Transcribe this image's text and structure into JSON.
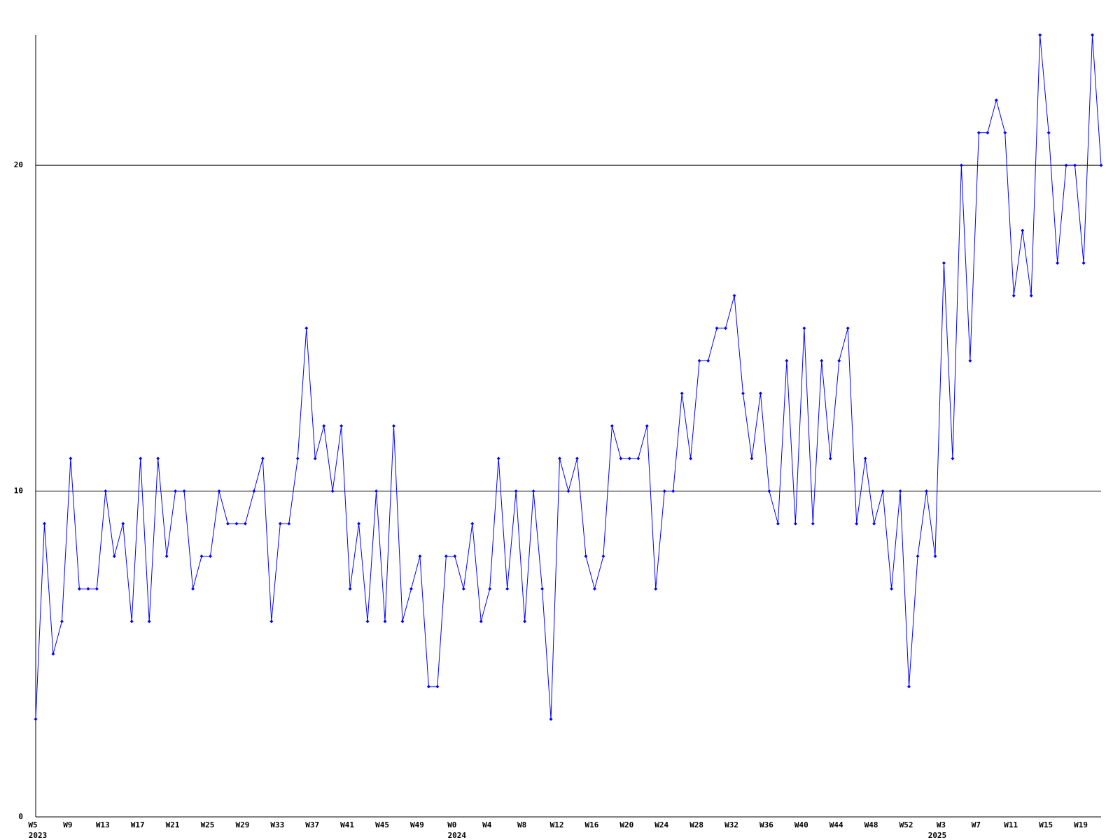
{
  "chart_data": {
    "type": "line",
    "categories": [
      "W5",
      null,
      null,
      null,
      "W9",
      null,
      null,
      null,
      "W13",
      null,
      null,
      null,
      "W17",
      null,
      null,
      null,
      "W21",
      null,
      null,
      null,
      "W25",
      null,
      null,
      null,
      "W29",
      null,
      null,
      null,
      "W33",
      null,
      null,
      null,
      "W37",
      null,
      null,
      null,
      "W41",
      null,
      null,
      null,
      "W45",
      null,
      null,
      null,
      "W49",
      null,
      null,
      null,
      "W0",
      null,
      null,
      null,
      "W4",
      null,
      null,
      null,
      "W8",
      null,
      null,
      null,
      "W12",
      null,
      null,
      null,
      "W16",
      null,
      null,
      null,
      "W20",
      null,
      null,
      null,
      "W24",
      null,
      null,
      null,
      "W28",
      null,
      null,
      null,
      "W32",
      null,
      null,
      null,
      "W36",
      null,
      null,
      null,
      "W40",
      null,
      null,
      null,
      "W44",
      null,
      null,
      null,
      "W48",
      null,
      null,
      null,
      "W52",
      null,
      null,
      null,
      "W3",
      null,
      null,
      null,
      "W7",
      null,
      null,
      null,
      "W11",
      null,
      null,
      null,
      "W15",
      null,
      null,
      null,
      "W19",
      null,
      null
    ],
    "x_year_labels": [
      "2023",
      null,
      null,
      null,
      null,
      null,
      null,
      null,
      null,
      null,
      null,
      null,
      null,
      null,
      null,
      null,
      null,
      null,
      null,
      null,
      null,
      null,
      null,
      null,
      null,
      null,
      null,
      null,
      null,
      null,
      null,
      null,
      null,
      null,
      null,
      null,
      null,
      null,
      null,
      null,
      null,
      null,
      null,
      null,
      null,
      null,
      null,
      null,
      "2024",
      null,
      null,
      null,
      null,
      null,
      null,
      null,
      null,
      null,
      null,
      null,
      null,
      null,
      null,
      null,
      null,
      null,
      null,
      null,
      null,
      null,
      null,
      null,
      null,
      null,
      null,
      null,
      null,
      null,
      null,
      null,
      null,
      null,
      null,
      null,
      null,
      null,
      null,
      null,
      null,
      null,
      null,
      null,
      null,
      null,
      null,
      null,
      null,
      null,
      null,
      null,
      null,
      null,
      null,
      "2025",
      null,
      null,
      null,
      null,
      null,
      null,
      null,
      null,
      null,
      null,
      null,
      null,
      null,
      null,
      null,
      null,
      null,
      null,
      null,
      null,
      null
    ],
    "values": [
      3,
      9,
      5,
      6,
      11,
      7,
      7,
      7,
      10,
      8,
      9,
      6,
      11,
      6,
      11,
      8,
      10,
      10,
      7,
      8,
      8,
      10,
      9,
      9,
      9,
      10,
      11,
      6,
      9,
      9,
      11,
      15,
      11,
      12,
      10,
      12,
      7,
      9,
      6,
      10,
      6,
      12,
      6,
      7,
      8,
      4,
      4,
      8,
      8,
      7,
      9,
      6,
      7,
      11,
      7,
      10,
      6,
      10,
      7,
      3,
      11,
      10,
      11,
      8,
      7,
      8,
      12,
      11,
      11,
      11,
      12,
      7,
      10,
      10,
      13,
      11,
      14,
      14,
      15,
      15,
      16,
      13,
      11,
      13,
      10,
      9,
      14,
      9,
      15,
      9,
      14,
      11,
      14,
      15,
      9,
      11,
      9,
      10,
      7,
      10,
      4,
      8,
      10,
      8,
      17,
      11,
      20,
      14,
      21,
      21,
      22,
      21,
      16,
      18,
      16,
      24,
      21,
      17,
      20,
      20,
      17,
      24,
      20
    ],
    "color": "#0000ff",
    "ylim": [
      0,
      24
    ],
    "yticks": [
      0,
      10,
      20
    ],
    "grid": true
  }
}
